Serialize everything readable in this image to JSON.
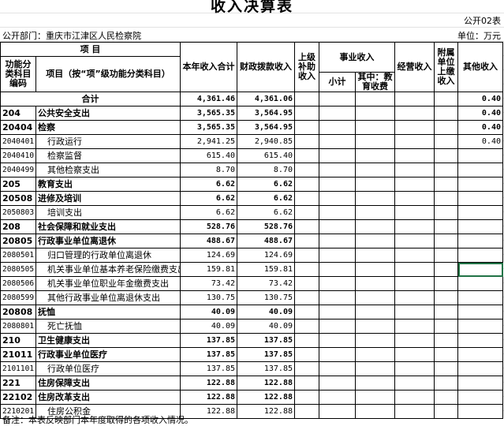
{
  "title": "收入决算表",
  "form_no": "公开02表",
  "department": "公开部门：重庆市江津区人民检察院",
  "unit": "单位：万元",
  "headers": {
    "item": "项    目",
    "code": "功能分类科目编码",
    "name": "项目（按“项”级功能分类科目）",
    "total": "本年收入合计",
    "fiscal": "财政拨款收入",
    "superior": "上级补助收入",
    "business": "事业收入",
    "subtotal": "小计",
    "education": "其中：教育收费",
    "operating": "经营收入",
    "affiliated": "附属单位上缴收入",
    "other": "其他收入"
  },
  "total_row": {
    "label": "合计",
    "total": "4,361.46",
    "fiscal": "4,361.06",
    "other": "0.40"
  },
  "rows": [
    {
      "code": "204",
      "name": "公共安全支出",
      "total": "3,565.35",
      "fiscal": "3,564.95",
      "other": "0.40"
    },
    {
      "code": "20404",
      "name": "检察",
      "total": "3,565.35",
      "fiscal": "3,564.95",
      "other": "0.40"
    },
    {
      "code": "2040401",
      "name": "行政运行",
      "total": "2,941.25",
      "fiscal": "2,940.85",
      "other": "0.40"
    },
    {
      "code": "2040410",
      "name": "检察监督",
      "total": "615.40",
      "fiscal": "615.40"
    },
    {
      "code": "2040499",
      "name": "其他检察支出",
      "total": "8.70",
      "fiscal": "8.70"
    },
    {
      "code": "205",
      "name": "教育支出",
      "total": "6.62",
      "fiscal": "6.62"
    },
    {
      "code": "20508",
      "name": "进修及培训",
      "total": "6.62",
      "fiscal": "6.62"
    },
    {
      "code": "2050803",
      "name": "培训支出",
      "total": "6.62",
      "fiscal": "6.62"
    },
    {
      "code": "208",
      "name": "社会保障和就业支出",
      "total": "528.76",
      "fiscal": "528.76"
    },
    {
      "code": "20805",
      "name": "行政事业单位离退休",
      "total": "488.67",
      "fiscal": "488.67"
    },
    {
      "code": "2080501",
      "name": "归口管理的行政单位离退休",
      "total": "124.69",
      "fiscal": "124.69"
    },
    {
      "code": "2080505",
      "name": "机关事业单位基本养老保险缴费支出",
      "total": "159.81",
      "fiscal": "159.81"
    },
    {
      "code": "2080506",
      "name": "机关事业单位职业年金缴费支出",
      "total": "73.42",
      "fiscal": "73.42"
    },
    {
      "code": "2080599",
      "name": "其他行政事业单位离退休支出",
      "total": "130.75",
      "fiscal": "130.75"
    },
    {
      "code": "20808",
      "name": "抚恤",
      "total": "40.09",
      "fiscal": "40.09"
    },
    {
      "code": "2080801",
      "name": "死亡抚恤",
      "total": "40.09",
      "fiscal": "40.09"
    },
    {
      "code": "210",
      "name": "卫生健康支出",
      "total": "137.85",
      "fiscal": "137.85"
    },
    {
      "code": "21011",
      "name": "行政事业单位医疗",
      "total": "137.85",
      "fiscal": "137.85"
    },
    {
      "code": "2101101",
      "name": "行政单位医疗",
      "total": "137.85",
      "fiscal": "137.85"
    },
    {
      "code": "221",
      "name": "住房保障支出",
      "total": "122.88",
      "fiscal": "122.88"
    },
    {
      "code": "22102",
      "name": "住房改革支出",
      "total": "122.88",
      "fiscal": "122.88"
    },
    {
      "code": "2210201",
      "name": "住房公积金",
      "total": "122.88",
      "fiscal": "122.88"
    }
  ],
  "note": "备注：本表反映部门本年度取得的各项收入情况。"
}
